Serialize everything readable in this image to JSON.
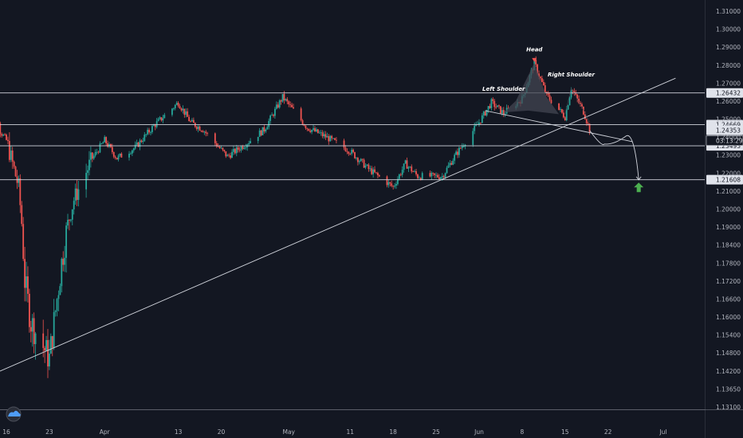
{
  "chart_data": {
    "type": "candlestick",
    "title": "",
    "ylim": [
      1.131,
      1.317
    ],
    "y_ticks": [
      "1.31000",
      "1.30000",
      "1.29000",
      "1.28000",
      "1.27000",
      "1.26000",
      "1.25000",
      "1.24000",
      "1.23000",
      "1.22000",
      "1.21000",
      "1.20000",
      "1.19000",
      "1.18400",
      "1.17800",
      "1.17200",
      "1.16600",
      "1.16000",
      "1.15400",
      "1.14800",
      "1.14200",
      "1.13650",
      "1.13100"
    ],
    "x_ticks": [
      {
        "label": "16",
        "date": "2020-03-16"
      },
      {
        "label": "23",
        "date": "2020-03-23"
      },
      {
        "label": "Apr",
        "date": "2020-04-01"
      },
      {
        "label": "13",
        "date": "2020-04-13"
      },
      {
        "label": "20",
        "date": "2020-04-20"
      },
      {
        "label": "May",
        "date": "2020-05-01"
      },
      {
        "label": "11",
        "date": "2020-05-11"
      },
      {
        "label": "18",
        "date": "2020-05-18"
      },
      {
        "label": "25",
        "date": "2020-05-25"
      },
      {
        "label": "Jun",
        "date": "2020-06-01"
      },
      {
        "label": "8",
        "date": "2020-06-08"
      },
      {
        "label": "15",
        "date": "2020-06-15"
      },
      {
        "label": "22",
        "date": "2020-06-22"
      },
      {
        "label": "Jul",
        "date": "2020-07-01"
      }
    ],
    "horizontal_levels": [
      {
        "price": 1.26432,
        "label": "1.26432"
      },
      {
        "price": 1.24669,
        "label": "1.24669"
      },
      {
        "price": 1.23493,
        "label": "1.23493"
      },
      {
        "price": 1.21608,
        "label": "1.21608"
      }
    ],
    "current_price": {
      "price": 1.24353,
      "label": "1.24353",
      "countdown": "03:13:29"
    },
    "close_path": [
      {
        "date": "2020-03-12",
        "value": 1.258
      },
      {
        "date": "2020-03-16",
        "value": 1.238
      },
      {
        "date": "2020-03-18",
        "value": 1.212
      },
      {
        "date": "2020-03-19",
        "value": 1.172
      },
      {
        "date": "2020-03-20",
        "value": 1.158
      },
      {
        "date": "2020-03-23",
        "value": 1.146
      },
      {
        "date": "2020-03-25",
        "value": 1.178
      },
      {
        "date": "2020-03-27",
        "value": 1.205
      },
      {
        "date": "2020-03-30",
        "value": 1.228
      },
      {
        "date": "2020-04-01",
        "value": 1.238
      },
      {
        "date": "2020-04-03",
        "value": 1.228
      },
      {
        "date": "2020-04-06",
        "value": 1.234
      },
      {
        "date": "2020-04-09",
        "value": 1.246
      },
      {
        "date": "2020-04-13",
        "value": 1.259
      },
      {
        "date": "2020-04-15",
        "value": 1.248
      },
      {
        "date": "2020-04-17",
        "value": 1.244
      },
      {
        "date": "2020-04-21",
        "value": 1.229
      },
      {
        "date": "2020-04-24",
        "value": 1.236
      },
      {
        "date": "2020-04-27",
        "value": 1.244
      },
      {
        "date": "2020-04-30",
        "value": 1.262
      },
      {
        "date": "2020-05-04",
        "value": 1.245
      },
      {
        "date": "2020-05-07",
        "value": 1.24
      },
      {
        "date": "2020-05-11",
        "value": 1.232
      },
      {
        "date": "2020-05-14",
        "value": 1.222
      },
      {
        "date": "2020-05-18",
        "value": 1.212
      },
      {
        "date": "2020-05-20",
        "value": 1.225
      },
      {
        "date": "2020-05-22",
        "value": 1.218
      },
      {
        "date": "2020-05-26",
        "value": 1.218
      },
      {
        "date": "2020-05-28",
        "value": 1.229
      },
      {
        "date": "2020-06-01",
        "value": 1.248
      },
      {
        "date": "2020-06-03",
        "value": 1.259
      },
      {
        "date": "2020-06-05",
        "value": 1.253
      },
      {
        "date": "2020-06-08",
        "value": 1.261
      },
      {
        "date": "2020-06-10",
        "value": 1.281
      },
      {
        "date": "2020-06-12",
        "value": 1.263
      },
      {
        "date": "2020-06-15",
        "value": 1.251
      },
      {
        "date": "2020-06-16",
        "value": 1.267
      },
      {
        "date": "2020-06-18",
        "value": 1.254
      },
      {
        "date": "2020-06-19",
        "value": 1.244
      }
    ],
    "annotations": [
      {
        "text": "Head",
        "date": "2020-06-10",
        "value": 1.2875
      },
      {
        "text": "Right Shoulder",
        "date": "2020-06-16",
        "value": 1.2735
      },
      {
        "text": "Left Shoulder",
        "date": "2020-06-05",
        "value": 1.2655
      }
    ],
    "trendlines": [
      {
        "from": {
          "date": "2020-03-11",
          "value": 1.1386
        },
        "to": {
          "date": "2020-07-03",
          "value": 1.2725
        }
      },
      {
        "from": {
          "date": "2020-06-02",
          "value": 1.2545
        },
        "to": {
          "date": "2020-06-26",
          "value": 1.2372
        }
      }
    ],
    "projection": [
      {
        "date": "2020-06-19",
        "value": 1.2435
      },
      {
        "date": "2020-06-21",
        "value": 1.2368
      },
      {
        "date": "2020-06-23",
        "value": 1.2372
      },
      {
        "date": "2020-06-25",
        "value": 1.2405
      },
      {
        "date": "2020-06-27",
        "value": 1.216
      }
    ],
    "target_arrow": {
      "date": "2020-06-27",
      "value": 1.2145
    },
    "colors": {
      "background": "#131722",
      "up": "#26a69a",
      "down": "#ef5350",
      "line": "#d1d4dc",
      "axis_text": "#b2b5be",
      "label_bg": "#e0e3eb",
      "label_text": "#131722",
      "target": "#4caf50",
      "pattern_fill": "#434651"
    }
  }
}
